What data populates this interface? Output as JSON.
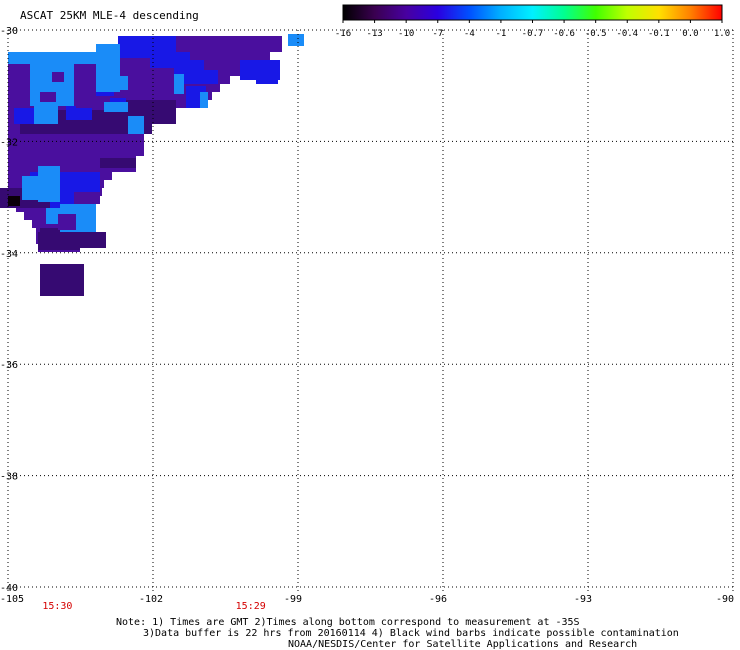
{
  "title": "ASCAT 25KM MLE-4 descending",
  "colorbar": {
    "labels": [
      "-16",
      "-13",
      "-10",
      "-7",
      "-4",
      "-1",
      "-0.7",
      "-0.6",
      "-0.5",
      "-0.4",
      "-0.1",
      "0.0",
      "1.0"
    ],
    "gradient": [
      "#000000",
      "#3a0050",
      "#4800a0",
      "#2a00e0",
      "#0050ff",
      "#00b0ff",
      "#00f0ff",
      "#00ff90",
      "#40ff00",
      "#c0ff00",
      "#ffe000",
      "#ff8000",
      "#ff0000"
    ]
  },
  "map": {
    "lat_labels": [
      "-30",
      "-32",
      "-34",
      "-36",
      "-38",
      "-40"
    ],
    "lon_labels": [
      "-105",
      "-102",
      "-99",
      "-96",
      "-93",
      "-90"
    ],
    "time_labels": [
      {
        "text": "15:30",
        "lon": -104.0
      },
      {
        "text": "15:29",
        "lon": -100.0
      }
    ],
    "swath_colors": {
      "purple": "#4a0f9e",
      "deep": "#360a72",
      "blue": "#1818e6",
      "sky": "#1a8cf8",
      "black": "#0a0008"
    }
  },
  "notes": {
    "line1": "Note: 1) Times are GMT 2)Times along bottom correspond to measurement at -35S",
    "line2": "3)Data buffer is 22 hrs from 20160114 4) Black wind barbs indicate possible contamination",
    "line3": "NOAA/NESDIS/Center for Satellite Applications and Research"
  }
}
